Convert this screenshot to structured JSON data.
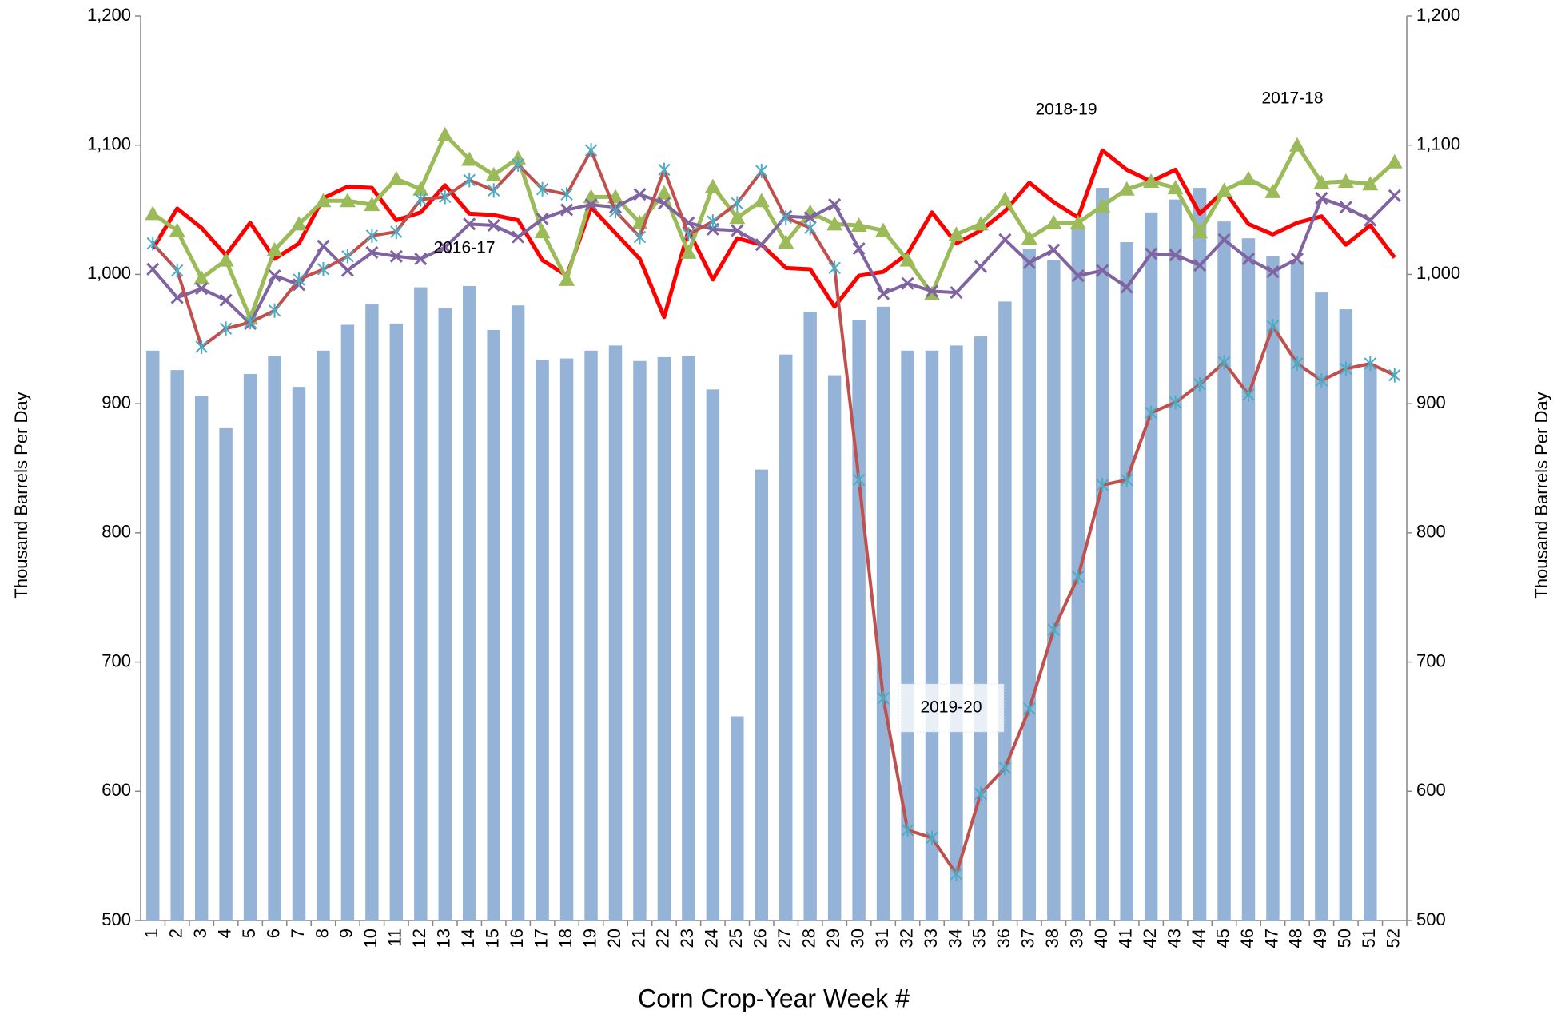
{
  "chart_data": {
    "type": "bar_line",
    "x_label": "Corn Crop-Year Week #",
    "y_label": "Thousand Barrels Per Day",
    "y2_label": "Thousand Barrels Per Day",
    "categories": [
      "1",
      "2",
      "3",
      "4",
      "5",
      "6",
      "7",
      "8",
      "9",
      "10",
      "11",
      "12",
      "13",
      "14",
      "15",
      "16",
      "17",
      "18",
      "19",
      "20",
      "21",
      "22",
      "23",
      "24",
      "25",
      "26",
      "27",
      "28",
      "29",
      "30",
      "31",
      "32",
      "33",
      "34",
      "35",
      "36",
      "37",
      "38",
      "39",
      "40",
      "41",
      "42",
      "43",
      "44",
      "45",
      "46",
      "47",
      "48",
      "49",
      "50",
      "51",
      "52"
    ],
    "ylim": [
      500,
      1200
    ],
    "yticks": [
      500,
      600,
      700,
      800,
      900,
      {
        "value": 1000,
        "label": "1,000"
      },
      {
        "value": 1100,
        "label": "1,100"
      },
      {
        "value": 1200,
        "label": "1,200"
      }
    ],
    "y2lim": [
      500,
      1200
    ],
    "y2ticks": [
      500,
      600,
      700,
      800,
      900,
      {
        "value": 1000,
        "label": "1,000"
      },
      {
        "value": 1100,
        "label": "1,100"
      },
      {
        "value": 1200,
        "label": "1,200"
      }
    ],
    "grid": false,
    "series": [
      {
        "kind": "bar",
        "color": "#95b3d7",
        "values": [
          941,
          926,
          906,
          881,
          923,
          937,
          913,
          941,
          961,
          977,
          962,
          990,
          974,
          991,
          957,
          976,
          934,
          935,
          941,
          945,
          933,
          936,
          937,
          911,
          658,
          849,
          938,
          971,
          922,
          965,
          975,
          941,
          941,
          945,
          952,
          979,
          1020,
          1011,
          1035,
          1067,
          1025,
          1048,
          1058,
          1067,
          1041,
          1028,
          1014,
          1010,
          986,
          973,
          930,
          null
        ]
      },
      {
        "name": "2018-19",
        "kind": "line",
        "marker": "none",
        "color": "#ff0000",
        "values": [
          1020,
          1051,
          1036,
          1015,
          1040,
          1012,
          1024,
          1059,
          1068,
          1067,
          1042,
          1048,
          1069,
          1047,
          1046,
          1042,
          1011,
          999,
          1052,
          1032,
          1012,
          967,
          1034,
          996,
          1028,
          1023,
          1005,
          1004,
          975,
          999,
          1002,
          1016,
          1048,
          1024,
          1034,
          1049,
          1071,
          1056,
          1044,
          1096,
          1081,
          1072,
          1081,
          1047,
          1065,
          1039,
          1031,
          1040,
          1045,
          1023,
          1038,
          1013
        ]
      },
      {
        "name": "2017-18",
        "kind": "line",
        "marker": "triangle",
        "color": "#9bbb59",
        "values": [
          1047,
          1034,
          997,
          1011,
          966,
          1019,
          1039,
          1057,
          1057,
          1054,
          1074,
          1066,
          1108,
          1089,
          1077,
          1090,
          1033,
          996,
          1060,
          1060,
          1040,
          1063,
          1017,
          1068,
          1044,
          1057,
          1025,
          1048,
          1039,
          1038,
          1034,
          1011,
          985,
          1031,
          1039,
          1058,
          1028,
          1040,
          1040,
          1053,
          1066,
          1072,
          1067,
          1033,
          1065,
          1074,
          1064,
          1100,
          1071,
          1072,
          1070,
          1087
        ]
      },
      {
        "name": "2016-17",
        "kind": "line",
        "marker": "x",
        "color": "#8064a2",
        "values": [
          1004,
          982,
          989,
          980,
          962,
          999,
          992,
          1022,
          1003,
          1017,
          1014,
          1012,
          1021,
          1039,
          1038,
          1029,
          1043,
          1050,
          1054,
          1052,
          1062,
          1055,
          1040,
          1035,
          1034,
          1023,
          1045,
          1044,
          1054,
          1020,
          985,
          993,
          987,
          986,
          1006,
          1027,
          1009,
          1019,
          999,
          1003,
          990,
          1016,
          1015,
          1007,
          1027,
          1012,
          1002,
          1012,
          1059,
          1052,
          1042,
          1061
        ]
      },
      {
        "name": "2019-20",
        "kind": "line",
        "marker": "star",
        "color": "#c0504d",
        "marker_color": "#4bacc6",
        "values": [
          1024,
          1003,
          944,
          958,
          963,
          972,
          996,
          1004,
          1014,
          1030,
          1033,
          1058,
          1060,
          1073,
          1065,
          1085,
          1066,
          1062,
          1096,
          1049,
          1029,
          1081,
          1031,
          1041,
          1055,
          1080,
          1044,
          1036,
          1005,
          841,
          672,
          570,
          564,
          536,
          598,
          618,
          664,
          725,
          766,
          837,
          841,
          893,
          901,
          915,
          932,
          907,
          960,
          931,
          918,
          927,
          931,
          922
        ]
      }
    ]
  }
}
